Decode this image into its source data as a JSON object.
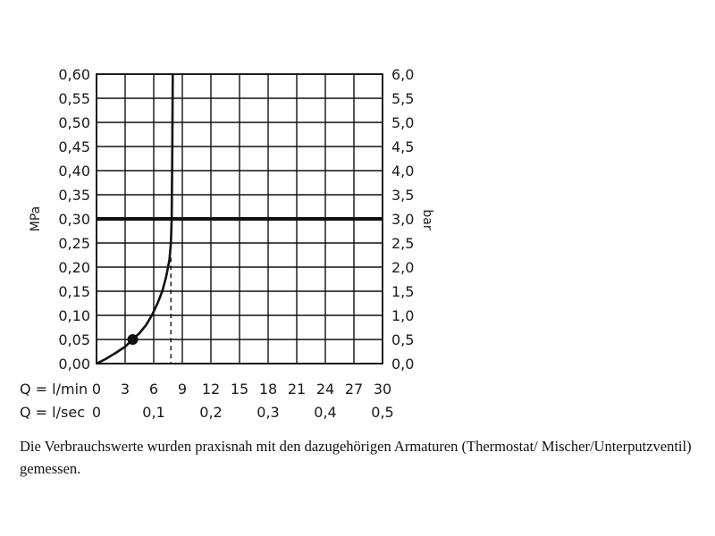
{
  "chart_data": {
    "type": "line",
    "y_left": {
      "label": "MPa",
      "ticks": [
        "0,00",
        "0,05",
        "0,10",
        "0,15",
        "0,20",
        "0,25",
        "0,30",
        "0,35",
        "0,40",
        "0,45",
        "0,50",
        "0,55",
        "0,60"
      ],
      "range": [
        0,
        0.6
      ]
    },
    "y_right": {
      "label": "bar",
      "ticks": [
        "0,0",
        "0,5",
        "1,0",
        "1,5",
        "2,0",
        "2,5",
        "3,0",
        "3,5",
        "4,0",
        "4,5",
        "5,0",
        "5,5",
        "6,0"
      ],
      "range": [
        0,
        6
      ]
    },
    "x_lmin": {
      "label": "Q = l/min",
      "ticks": [
        "0",
        "3",
        "6",
        "9",
        "12",
        "15",
        "18",
        "21",
        "24",
        "27",
        "30"
      ],
      "range": [
        0,
        30
      ]
    },
    "x_lsec": {
      "label": "Q = l/sec",
      "ticks": [
        "0",
        "0,1",
        "0,2",
        "0,3",
        "0,4",
        "0,5"
      ]
    },
    "grid": true,
    "series": [
      {
        "points": [
          [
            0,
            0
          ],
          [
            1,
            0.01
          ],
          [
            2,
            0.022
          ],
          [
            3,
            0.035
          ],
          [
            3.8,
            0.05
          ],
          [
            4.5,
            0.063
          ],
          [
            5.2,
            0.08
          ],
          [
            5.8,
            0.1
          ],
          [
            6.4,
            0.125
          ],
          [
            6.9,
            0.15
          ],
          [
            7.3,
            0.18
          ],
          [
            7.65,
            0.215
          ],
          [
            7.8,
            0.25
          ],
          [
            7.88,
            0.3
          ],
          [
            7.95,
            0.45
          ],
          [
            8.0,
            0.6
          ]
        ]
      }
    ],
    "marker": {
      "x": 3.8,
      "y": 0.05
    },
    "reference_line_y": 0.3,
    "dashed_drop": {
      "x": 7.8,
      "y_from": 0.22
    }
  },
  "note": "Die Verbrauchswerte wurden praxisnah mit den dazugehörigen Armaturen (Thermostat/ Mischer/Unterputzventil) gemessen."
}
